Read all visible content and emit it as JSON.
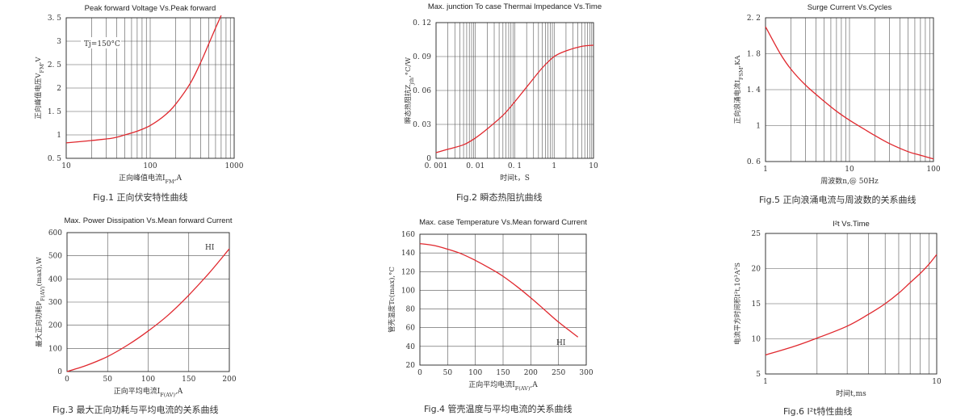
{
  "chart_data": [
    {
      "type": "line",
      "title": "Peak forward Voltage Vs.Peak forward",
      "xlabel": "正向峰值电流I",
      "xlabel_sub": "FM",
      "xlabel_end": ",A",
      "ylabel": "正向峰值电压V",
      "ylabel_sub": "FM",
      "ylabel_end": ",V",
      "caption": "Fig.1 正向伏安特性曲线",
      "annotation": "Tj=150°C",
      "xscale": "log",
      "xlim": [
        10,
        1000
      ],
      "xticks": [
        10,
        100,
        1000
      ],
      "xtick_labels": [
        "10",
        "100",
        "1000"
      ],
      "ylim": [
        0.5,
        3.5
      ],
      "yticks": [
        0.5,
        1,
        1.5,
        2,
        2.5,
        3,
        3.5
      ],
      "ytick_labels": [
        "0. 5",
        "1",
        "1. 5",
        "2",
        "2. 5",
        "3",
        "3. 5"
      ],
      "series": [
        {
          "x": [
            10,
            20,
            35,
            50,
            70,
            100,
            150,
            200,
            300,
            400,
            500,
            600,
            700
          ],
          "y": [
            0.83,
            0.88,
            0.93,
            1.0,
            1.08,
            1.2,
            1.42,
            1.65,
            2.1,
            2.55,
            2.95,
            3.28,
            3.55
          ]
        }
      ]
    },
    {
      "type": "line",
      "title": "Max. junction To case Thermai Impedance Vs.Time",
      "xlabel": "时间t，S",
      "ylabel": "瞬态热阻抗Z",
      "ylabel_sub": "jth",
      "ylabel_end": ",°C/W",
      "caption": "Fig.2 瞬态热阻抗曲线",
      "xscale": "log",
      "xlim": [
        0.001,
        10
      ],
      "xticks": [
        0.001,
        0.01,
        0.1,
        1,
        10
      ],
      "xtick_labels": [
        "0. 001",
        "0. 01",
        "0. 1",
        "1",
        "10"
      ],
      "ylim": [
        0,
        0.12
      ],
      "yticks": [
        0,
        0.03,
        0.06,
        0.09,
        0.12
      ],
      "ytick_labels": [
        "0",
        "0. 03",
        "0. 06",
        "0. 09",
        "0. 12"
      ],
      "series": [
        {
          "x": [
            0.001,
            0.002,
            0.005,
            0.01,
            0.02,
            0.05,
            0.1,
            0.2,
            0.5,
            1,
            2,
            5,
            10
          ],
          "y": [
            0.005,
            0.008,
            0.012,
            0.018,
            0.026,
            0.038,
            0.05,
            0.063,
            0.08,
            0.09,
            0.095,
            0.099,
            0.1
          ]
        }
      ]
    },
    {
      "type": "line",
      "title": "Surge Current Vs.Cycles",
      "xlabel": "周波数n,@ 50Hz",
      "ylabel": "正向浪涌电流I",
      "ylabel_sub": "FSM",
      "ylabel_end": ",KA",
      "caption": "Fig.5 正向浪涌电流与周波数的关系曲线",
      "xscale": "log",
      "xlim": [
        1,
        100
      ],
      "xticks": [
        1,
        10,
        100
      ],
      "xtick_labels": [
        "1",
        "10",
        "100"
      ],
      "ylim": [
        0.6,
        2.2
      ],
      "yticks": [
        0.6,
        1,
        1.4,
        1.8,
        2.2
      ],
      "ytick_labels": [
        "0. 6",
        "1",
        "1. 4",
        "1. 8",
        "2. 2"
      ],
      "series": [
        {
          "x": [
            1,
            1.5,
            2,
            3,
            5,
            7,
            10,
            15,
            20,
            30,
            50,
            70,
            100
          ],
          "y": [
            2.1,
            1.8,
            1.63,
            1.45,
            1.27,
            1.16,
            1.06,
            0.96,
            0.89,
            0.8,
            0.71,
            0.67,
            0.63
          ]
        }
      ]
    },
    {
      "type": "line",
      "title": "Max. Power Dissipation Vs.Mean forward Current",
      "xlabel": "正向平均电流I",
      "xlabel_sub": "F(AV)",
      "xlabel_end": ",A",
      "ylabel": "最大正向功耗P",
      "ylabel_sub": "F(AV)",
      "ylabel_end": "(max),W",
      "caption": "Fig.3 最大正向功耗与平均电流的关系曲线",
      "annotation": "HI",
      "xlim": [
        0,
        200
      ],
      "xticks": [
        0,
        50,
        100,
        150,
        200
      ],
      "xtick_labels": [
        "0",
        "50",
        "100",
        "150",
        "200"
      ],
      "ylim": [
        0,
        600
      ],
      "yticks": [
        0,
        100,
        200,
        300,
        400,
        500,
        600
      ],
      "ytick_labels": [
        "0",
        "100",
        "200",
        "300",
        "400",
        "500",
        "600"
      ],
      "series": [
        {
          "x": [
            0,
            25,
            50,
            75,
            100,
            125,
            150,
            175,
            200
          ],
          "y": [
            0,
            28,
            65,
            115,
            175,
            245,
            330,
            425,
            530
          ]
        }
      ]
    },
    {
      "type": "line",
      "title": "Max. case Temperature Vs.Mean forward Current",
      "xlabel": "正向平均电流I",
      "xlabel_sub": "F(AV)",
      "xlabel_end": ",A",
      "ylabel": "管壳温度Tc(max),°C",
      "caption": "Fig.4 管壳温度与平均电流的关系曲线",
      "annotation": "HI",
      "xlim": [
        0,
        300
      ],
      "xticks": [
        0,
        50,
        100,
        150,
        200,
        250,
        300
      ],
      "xtick_labels": [
        "0",
        "50",
        "100",
        "150",
        "200",
        "250",
        "300"
      ],
      "ylim": [
        20,
        160
      ],
      "yticks": [
        20,
        40,
        60,
        80,
        100,
        120,
        140,
        160
      ],
      "ytick_labels": [
        "20",
        "40",
        "60",
        "80",
        "100",
        "120",
        "140",
        "160"
      ],
      "series": [
        {
          "x": [
            0,
            25,
            50,
            75,
            100,
            125,
            150,
            175,
            200,
            225,
            250,
            285
          ],
          "y": [
            150,
            148,
            144,
            139,
            132,
            124,
            115,
            104,
            92,
            79,
            66,
            50
          ]
        }
      ]
    },
    {
      "type": "line",
      "title": "I²t Vs.Time",
      "xlabel": "时间t,ms",
      "ylabel": "电流平方时间积I²t,10³A²S",
      "caption": "Fig.6 I²t特性曲线",
      "xscale": "log",
      "xlim": [
        1,
        10
      ],
      "xticks": [
        1,
        10
      ],
      "xtick_labels": [
        "1",
        "10"
      ],
      "ylim": [
        5,
        25
      ],
      "yticks": [
        5,
        10,
        15,
        20,
        25
      ],
      "ytick_labels": [
        "5",
        "10",
        "15",
        "20",
        "25"
      ],
      "series": [
        {
          "x": [
            1,
            1.5,
            2,
            3,
            4,
            5,
            6,
            7,
            8,
            9,
            10
          ],
          "y": [
            7.7,
            9.0,
            10.1,
            11.8,
            13.5,
            15.0,
            16.5,
            18.0,
            19.3,
            20.6,
            22.0
          ]
        }
      ]
    }
  ]
}
